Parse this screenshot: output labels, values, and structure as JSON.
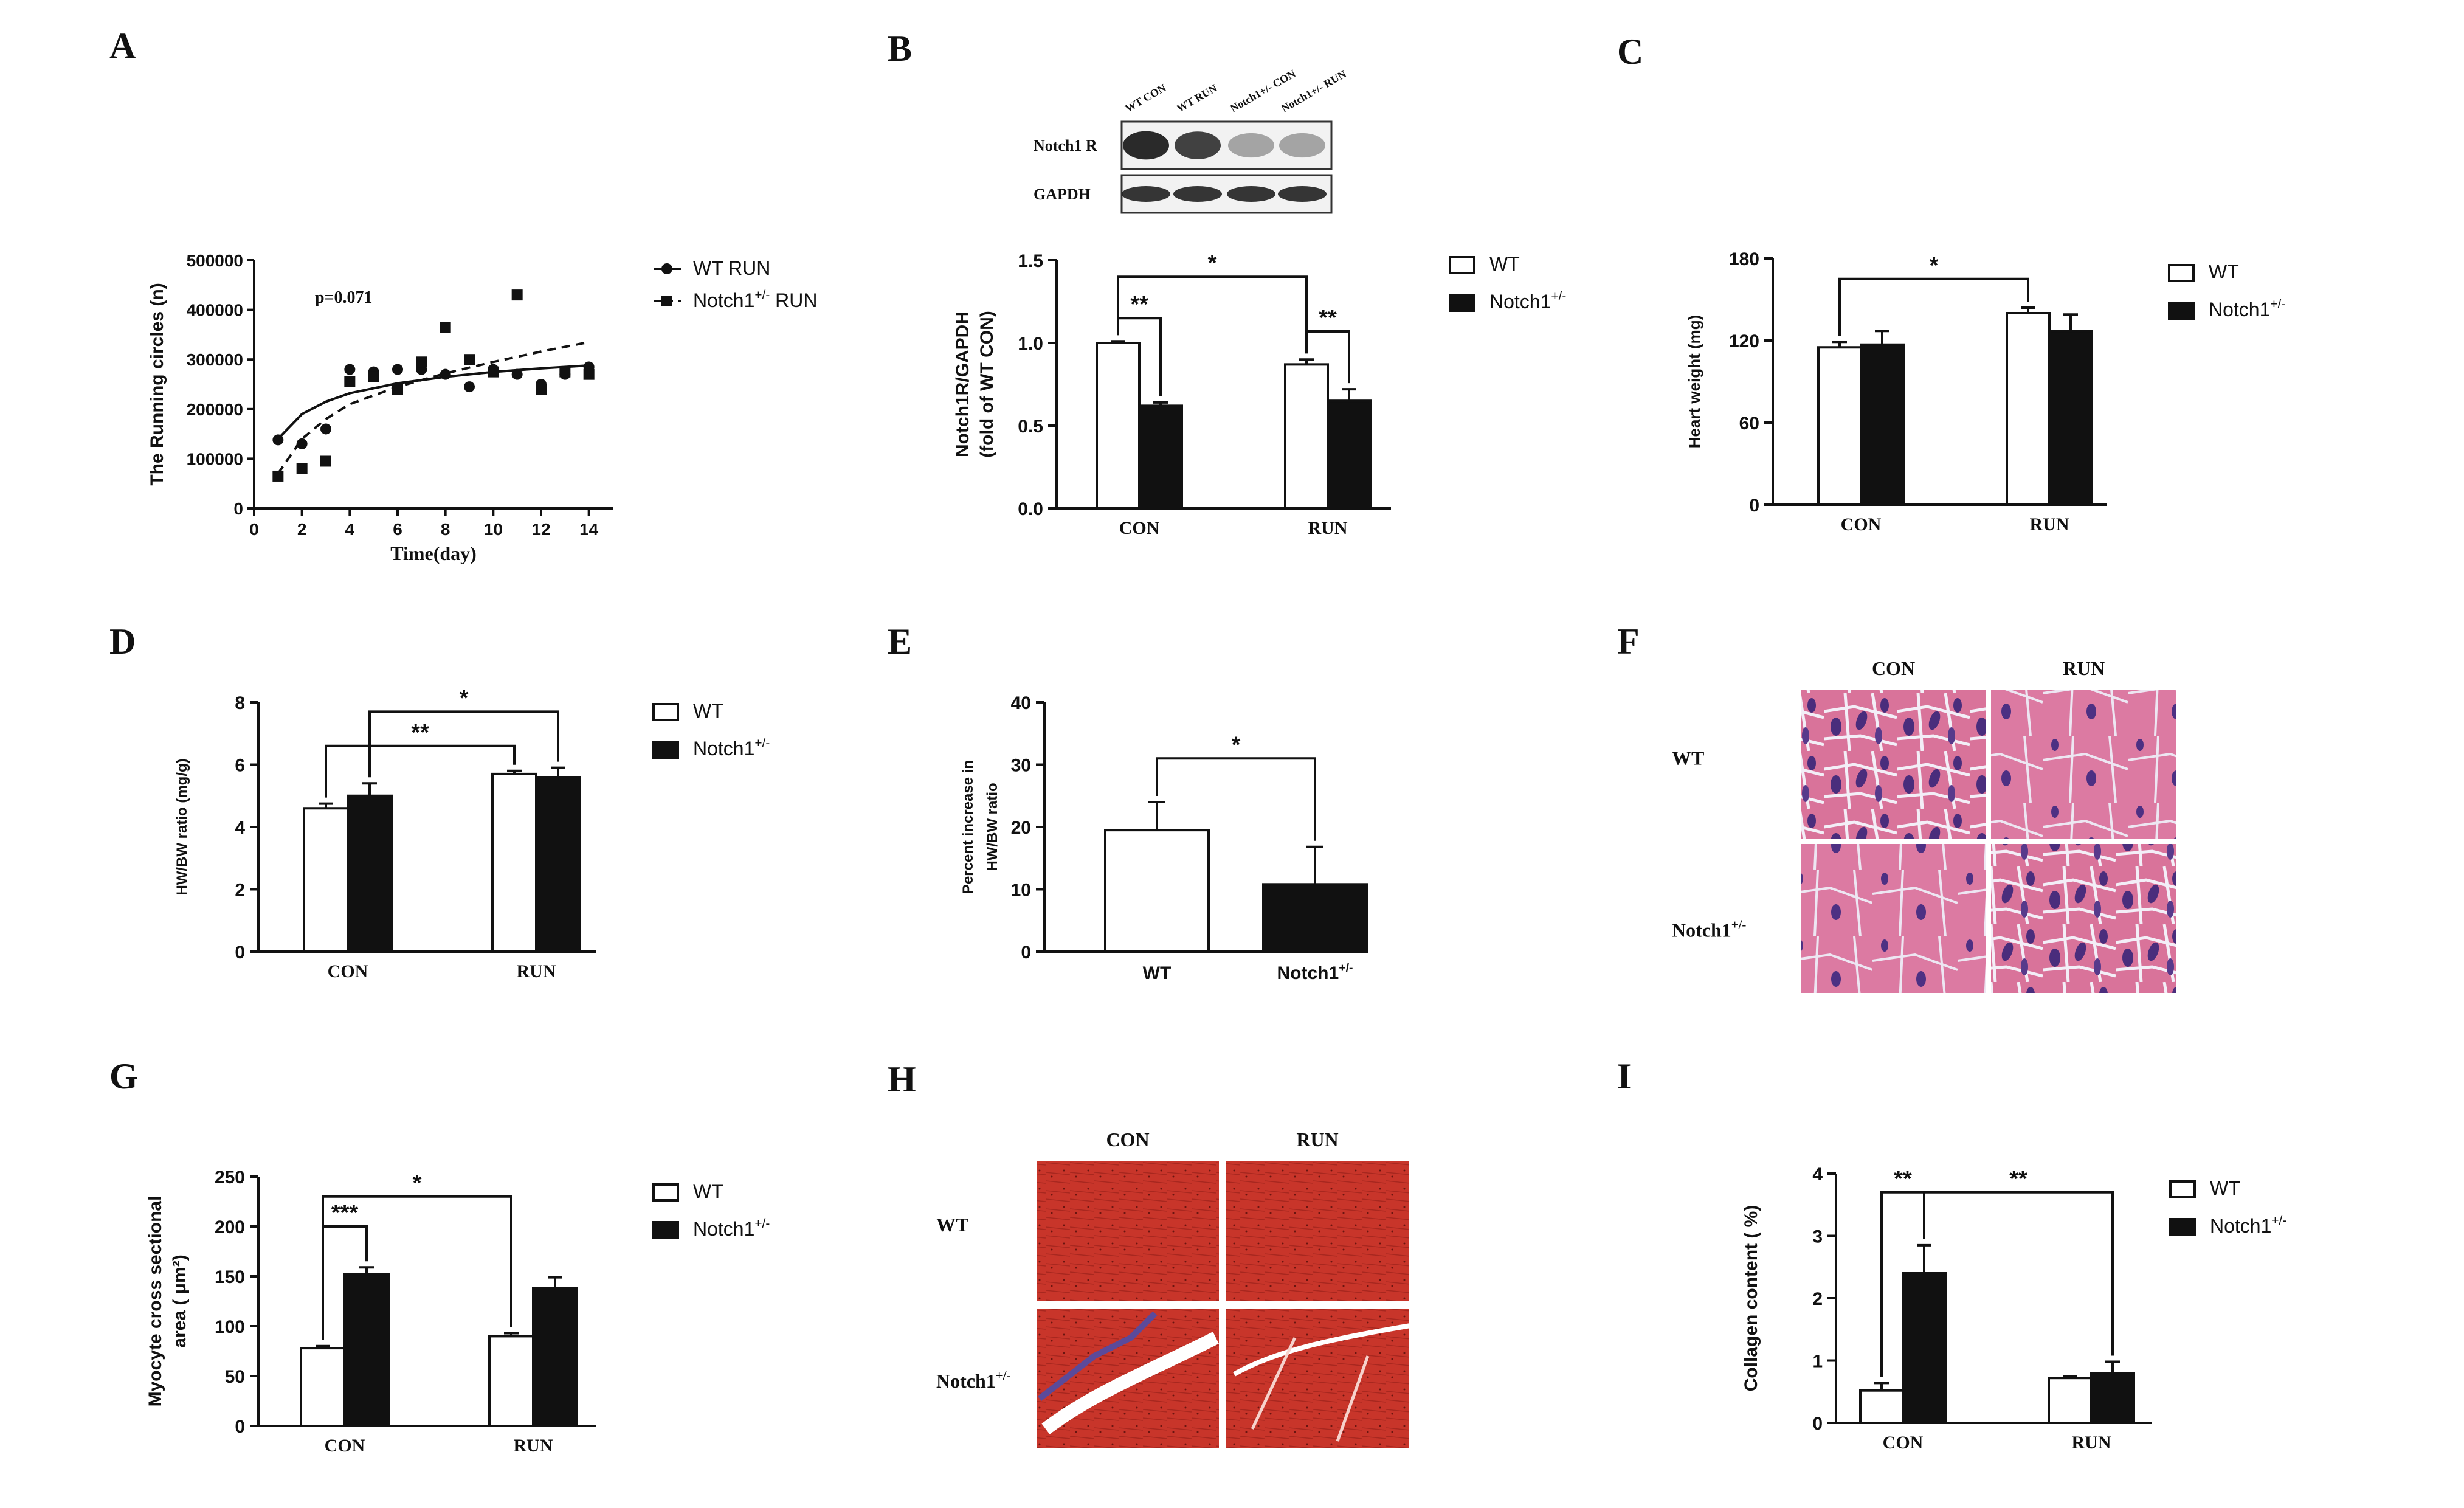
{
  "figure": {
    "panel_letters": [
      "A",
      "B",
      "C",
      "D",
      "E",
      "F",
      "G",
      "H",
      "I"
    ]
  },
  "colors": {
    "wt_fill": "#ffffff",
    "notch_fill": "#111111",
    "axis": "#111111",
    "he_pink": "#d87097",
    "he_nuclei": "#4b2f7a",
    "masson_red": "#c8352a"
  },
  "chart_data": [
    {
      "panel": "A",
      "type": "scatter",
      "ylabel": "The Running circles (n)",
      "xlabel": "Time(day)",
      "annotation": "p=0.071",
      "ylim": [
        0,
        500000
      ],
      "yticks": [
        0,
        100000,
        200000,
        300000,
        400000,
        500000
      ],
      "yticklabels": [
        "0",
        "100000",
        "200000",
        "300000",
        "400000",
        "500000"
      ],
      "xlim": [
        0,
        15
      ],
      "xticks": [
        0,
        2,
        4,
        6,
        8,
        10,
        12,
        14
      ],
      "xticklabels": [
        "0",
        "2",
        "4",
        "6",
        "8",
        "10",
        "12",
        "14"
      ],
      "series": [
        {
          "name": "WT RUN",
          "marker": "circle",
          "line": "solid",
          "x": [
            1,
            2,
            3,
            4,
            5,
            6,
            7,
            8,
            9,
            10,
            11,
            12,
            13,
            14
          ],
          "y": [
            138000,
            130000,
            160000,
            280000,
            275000,
            280000,
            280000,
            270000,
            245000,
            280000,
            270000,
            250000,
            270000,
            285000
          ],
          "fit": [
            [
              1,
              140000
            ],
            [
              2,
              190000
            ],
            [
              3,
              215000
            ],
            [
              4,
              232000
            ],
            [
              6,
              252000
            ],
            [
              8,
              265000
            ],
            [
              10,
              275000
            ],
            [
              12,
              282000
            ],
            [
              14,
              288000
            ]
          ]
        },
        {
          "name": "Notch1",
          "name_sup": "+/-",
          "name_suffix": " RUN",
          "marker": "square",
          "line": "dashed",
          "x": [
            1,
            2,
            3,
            4,
            5,
            6,
            7,
            8,
            9,
            10,
            11,
            12,
            13,
            14
          ],
          "y": [
            65000,
            80000,
            95000,
            255000,
            265000,
            240000,
            295000,
            365000,
            300000,
            275000,
            430000,
            240000,
            275000,
            270000
          ],
          "fit": [
            [
              1,
              70000
            ],
            [
              2,
              140000
            ],
            [
              3,
              180000
            ],
            [
              4,
              210000
            ],
            [
              6,
              245000
            ],
            [
              8,
              272000
            ],
            [
              10,
              295000
            ],
            [
              12,
              316000
            ],
            [
              14,
              335000
            ]
          ]
        }
      ]
    },
    {
      "panel": "B",
      "type": "bar",
      "blot": {
        "lanes": [
          "WT CON",
          "WT RUN",
          "Notch1+/- CON",
          "Notch1+/- RUN"
        ],
        "rows": [
          "Notch1 R",
          "GAPDH"
        ],
        "notch_intensity": [
          0.9,
          0.8,
          0.35,
          0.35
        ],
        "gapdh_intensity": [
          0.85,
          0.85,
          0.85,
          0.85
        ]
      },
      "ylabel": "Notch1R/GAPDH",
      "ylabel2": "(fold of WT CON)",
      "ylim": [
        0,
        1.5
      ],
      "yticks": [
        0,
        0.5,
        1.0,
        1.5
      ],
      "yticklabels": [
        "0.0",
        "0.5",
        "1.0",
        "1.5"
      ],
      "categories": [
        "CON",
        "RUN"
      ],
      "series": [
        {
          "name": "WT",
          "values": [
            1.0,
            0.87
          ],
          "err": [
            0.01,
            0.03
          ]
        },
        {
          "name": "Notch1",
          "name_sup": "+/-",
          "values": [
            0.62,
            0.65
          ],
          "err": [
            0.02,
            0.07
          ]
        }
      ],
      "significance": [
        "**",
        "**",
        "*"
      ]
    },
    {
      "panel": "C",
      "type": "bar",
      "ylabel": "Heart weight (mg)",
      "ylim": [
        0,
        180
      ],
      "yticks": [
        0,
        60,
        120,
        180
      ],
      "yticklabels": [
        "0",
        "60",
        "120",
        "180"
      ],
      "categories": [
        "CON",
        "RUN"
      ],
      "series": [
        {
          "name": "WT",
          "values": [
            115,
            140
          ],
          "err": [
            4,
            4
          ]
        },
        {
          "name": "Notch1",
          "name_sup": "+/-",
          "values": [
            117,
            127
          ],
          "err": [
            10,
            12
          ]
        }
      ],
      "significance": [
        "*"
      ]
    },
    {
      "panel": "D",
      "type": "bar",
      "ylabel": "HW/BW ratio (mg/g)",
      "ylim": [
        0,
        8
      ],
      "yticks": [
        0,
        2,
        4,
        6,
        8
      ],
      "yticklabels": [
        "0",
        "2",
        "4",
        "6",
        "8"
      ],
      "categories": [
        "CON",
        "RUN"
      ],
      "series": [
        {
          "name": "WT",
          "values": [
            4.6,
            5.7
          ],
          "err": [
            0.15,
            0.1
          ]
        },
        {
          "name": "Notch1",
          "name_sup": "+/-",
          "values": [
            5.0,
            5.6
          ],
          "err": [
            0.4,
            0.3
          ]
        }
      ],
      "significance": [
        "**",
        "*"
      ]
    },
    {
      "panel": "E",
      "type": "bar",
      "ylabel": "Percent increase in",
      "ylabel2": "HW/BW ratio",
      "ylim": [
        0,
        40
      ],
      "yticks": [
        0,
        10,
        20,
        30,
        40
      ],
      "yticklabels": [
        "0",
        "10",
        "20",
        "30",
        "40"
      ],
      "categories": [
        "WT",
        "Notch1"
      ],
      "category_sup": [
        "",
        "+/-"
      ],
      "values": [
        19.5,
        10.8
      ],
      "err": [
        4.5,
        6.0
      ],
      "significance": [
        "*"
      ]
    },
    {
      "panel": "G",
      "type": "bar",
      "ylabel": "Myocyte cross sectional",
      "ylabel2": "area ( μm²)",
      "ylim": [
        0,
        250
      ],
      "yticks": [
        0,
        50,
        100,
        150,
        200,
        250
      ],
      "yticklabels": [
        "0",
        "50",
        "100",
        "150",
        "200",
        "250"
      ],
      "categories": [
        "CON",
        "RUN"
      ],
      "series": [
        {
          "name": "WT",
          "values": [
            78,
            90
          ],
          "err": [
            2,
            3
          ]
        },
        {
          "name": "Notch1",
          "name_sup": "+/-",
          "values": [
            152,
            138
          ],
          "err": [
            7,
            11
          ]
        }
      ],
      "significance": [
        "***",
        "*"
      ]
    },
    {
      "panel": "I",
      "type": "bar",
      "ylabel": "Collagen content ( %)",
      "ylim": [
        0,
        4
      ],
      "yticks": [
        0,
        1,
        2,
        3,
        4
      ],
      "yticklabels": [
        "0",
        "1",
        "2",
        "3",
        "4"
      ],
      "categories": [
        "CON",
        "RUN"
      ],
      "series": [
        {
          "name": "WT",
          "values": [
            0.52,
            0.72
          ],
          "err": [
            0.12,
            0.03
          ]
        },
        {
          "name": "Notch1",
          "name_sup": "+/-",
          "values": [
            2.4,
            0.8
          ],
          "err": [
            0.45,
            0.18
          ]
        }
      ],
      "significance": [
        "**",
        "**"
      ]
    }
  ],
  "histology": {
    "F": {
      "cols": [
        "CON",
        "RUN"
      ],
      "rows": [
        "WT",
        "Notch1"
      ],
      "row_sup": [
        "",
        "+/-"
      ]
    },
    "H": {
      "cols": [
        "CON",
        "RUN"
      ],
      "rows": [
        "WT",
        "Notch1"
      ],
      "row_sup": [
        "",
        "+/-"
      ]
    }
  }
}
